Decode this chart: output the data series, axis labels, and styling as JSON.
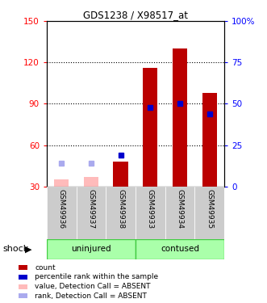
{
  "title": "GDS1238 / X98517_at",
  "samples": [
    "GSM49936",
    "GSM49937",
    "GSM49938",
    "GSM49933",
    "GSM49934",
    "GSM49935"
  ],
  "count_values": [
    null,
    null,
    48,
    116,
    130,
    98
  ],
  "rank_values": [
    null,
    null,
    19,
    48,
    50,
    44
  ],
  "count_absent": [
    35,
    37,
    null,
    null,
    null,
    null
  ],
  "rank_absent": [
    14,
    14,
    null,
    null,
    null,
    null
  ],
  "ylim_left": [
    30,
    150
  ],
  "ylim_right": [
    0,
    100
  ],
  "yticks_left": [
    30,
    60,
    90,
    120,
    150
  ],
  "yticks_right": [
    0,
    25,
    50,
    75,
    100
  ],
  "ytick_labels_left": [
    "30",
    "60",
    "90",
    "120",
    "150"
  ],
  "ytick_labels_right": [
    "0",
    "25",
    "50",
    "75",
    "100%"
  ],
  "bar_color_present": "#bb0000",
  "bar_color_absent_count": "#ffbbbb",
  "marker_color_present": "#0000cc",
  "marker_color_absent_rank": "#aaaaee",
  "group_color_light": "#aaffaa",
  "group_color_border": "#44cc44",
  "sample_bg_color": "#cccccc",
  "shock_label": "shock",
  "legend_items": [
    {
      "label": "count",
      "color": "#bb0000"
    },
    {
      "label": "percentile rank within the sample",
      "color": "#0000cc"
    },
    {
      "label": "value, Detection Call = ABSENT",
      "color": "#ffbbbb"
    },
    {
      "label": "rank, Detection Call = ABSENT",
      "color": "#aaaaee"
    }
  ]
}
